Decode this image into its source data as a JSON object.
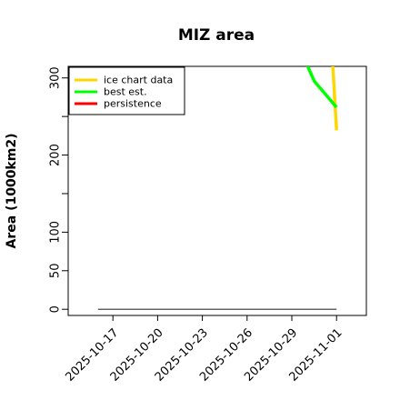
{
  "chart_data": {
    "type": "line",
    "title": "MIZ area",
    "xlabel": "",
    "ylabel": "Area (1000km2)",
    "x_ticks": [
      "2025-10-17",
      "2025-10-20",
      "2025-10-23",
      "2025-10-26",
      "2025-10-29",
      "2025-11-01"
    ],
    "y_ticks": [
      0,
      50,
      100,
      200,
      300
    ],
    "y_minor_ticks": [
      150,
      250
    ],
    "xlim": [
      "2025-10-14",
      "2025-11-03"
    ],
    "ylim": [
      -8,
      315
    ],
    "grid": false,
    "legend_position": "top-left",
    "series": [
      {
        "name": "ice chart data",
        "color": "#ffd700",
        "points": [
          {
            "x": "2025-10-31T18:00",
            "y": 316
          },
          {
            "x": "2025-11-01",
            "y": 232
          }
        ]
      },
      {
        "name": "best est.",
        "color": "#00ff00",
        "points": [
          {
            "x": "2025-10-30",
            "y": 318
          },
          {
            "x": "2025-10-30T12:00",
            "y": 296
          },
          {
            "x": "2025-11-01",
            "y": 262
          }
        ]
      },
      {
        "name": "persistence",
        "color": "#ff0000",
        "points": []
      }
    ],
    "baseline": {
      "color": "#666666",
      "from": "2025-10-16",
      "to": "2025-11-01",
      "y": 0
    }
  }
}
